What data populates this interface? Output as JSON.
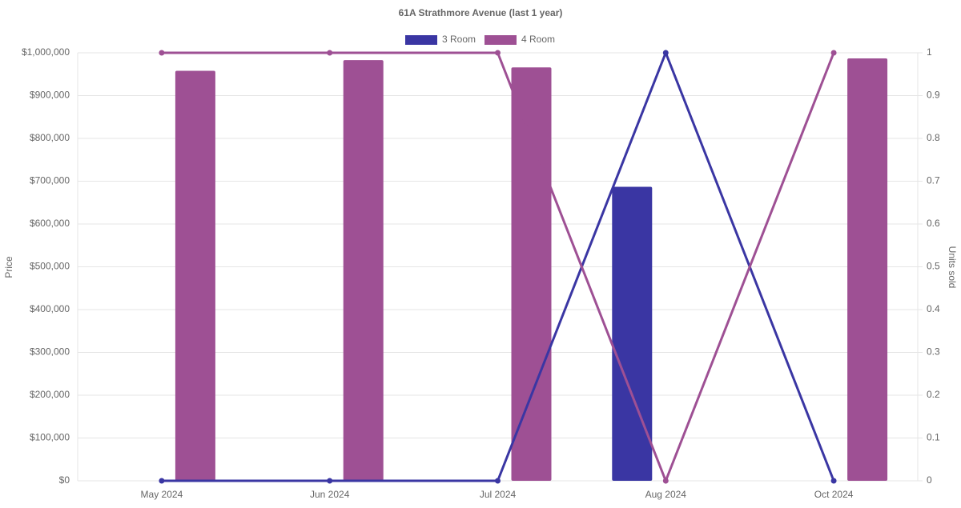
{
  "chart_data": {
    "type": "bar-line",
    "title": "61A Strathmore Avenue (last 1 year)",
    "y_label": "Price",
    "y2_label": "Units sold",
    "categories": [
      "May 2024",
      "Jun 2024",
      "Jul 2024",
      "Aug 2024",
      "Oct 2024"
    ],
    "series": [
      {
        "name": "3 Room",
        "color": "#3a36a3",
        "values": [
          null,
          null,
          null,
          687000,
          null
        ],
        "y2_values": [
          0,
          0,
          0,
          1,
          0
        ]
      },
      {
        "name": "4 Room",
        "color": "#9e5094",
        "values": [
          958000,
          983000,
          966000,
          null,
          987000
        ],
        "y2_values": [
          1,
          1,
          1,
          0,
          1
        ]
      }
    ],
    "ylim": [
      0,
      1000000
    ],
    "yticks": [
      {
        "value": 0,
        "label": "$0"
      },
      {
        "value": 100000,
        "label": "$100,000"
      },
      {
        "value": 200000,
        "label": "$200,000"
      },
      {
        "value": 300000,
        "label": "$300,000"
      },
      {
        "value": 400000,
        "label": "$400,000"
      },
      {
        "value": 500000,
        "label": "$500,000"
      },
      {
        "value": 600000,
        "label": "$600,000"
      },
      {
        "value": 700000,
        "label": "$700,000"
      },
      {
        "value": 800000,
        "label": "$800,000"
      },
      {
        "value": 900000,
        "label": "$900,000"
      },
      {
        "value": 1000000,
        "label": "$1,000,000"
      }
    ],
    "y2lim": [
      0,
      1
    ],
    "y2ticks": [
      0,
      0.1,
      0.2,
      0.3,
      0.4,
      0.5,
      0.6,
      0.7,
      0.8,
      0.9,
      1
    ],
    "grid": true
  }
}
